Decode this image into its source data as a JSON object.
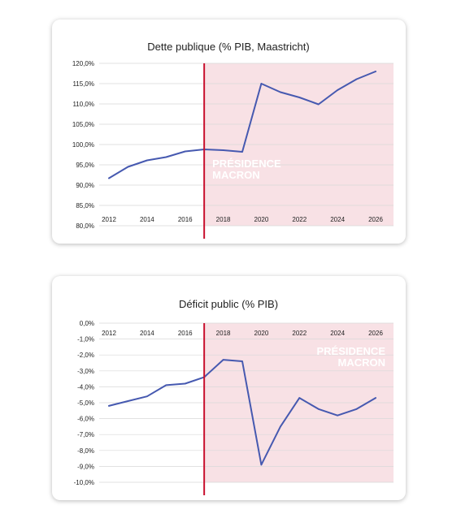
{
  "chart_data": [
    {
      "type": "line",
      "title": "Dette publique (% PIB, Maastricht)",
      "x": [
        2012,
        2013,
        2014,
        2015,
        2016,
        2017,
        2018,
        2019,
        2020,
        2021,
        2022,
        2023,
        2024,
        2025,
        2026
      ],
      "x_ticks": [
        "2012",
        "2014",
        "2016",
        "2018",
        "2020",
        "2022",
        "2024",
        "2026"
      ],
      "values": [
        91.7,
        94.5,
        96.1,
        96.9,
        98.3,
        98.8,
        98.6,
        98.2,
        115.0,
        112.9,
        111.6,
        109.9,
        113.4,
        116.1,
        118.0
      ],
      "ylim": [
        80,
        120
      ],
      "y_ticks": [
        "80,0%",
        "85,0%",
        "90,0%",
        "95,0%",
        "100,0%",
        "105,0%",
        "110,0%",
        "115,0%",
        "120,0%"
      ],
      "highlight": {
        "from": 2017,
        "to": 2026.5,
        "label_lines": [
          "PRÉSIDENCE",
          "MACRON"
        ],
        "label_position": "left-middle"
      },
      "line_color": "#4659b0",
      "band_color": "#f8e1e5",
      "marker_color": "#c8102e"
    },
    {
      "type": "line",
      "title": "Déficit public (% PIB)",
      "x": [
        2012,
        2013,
        2014,
        2015,
        2016,
        2017,
        2018,
        2019,
        2020,
        2021,
        2022,
        2023,
        2024,
        2025,
        2026
      ],
      "x_ticks": [
        "2012",
        "2014",
        "2016",
        "2018",
        "2020",
        "2022",
        "2024",
        "2026"
      ],
      "values": [
        -5.2,
        -4.9,
        -4.6,
        -3.9,
        -3.8,
        -3.4,
        -2.3,
        -2.4,
        -8.9,
        -6.5,
        -4.7,
        -5.4,
        -5.8,
        -5.4,
        -4.7
      ],
      "ylim": [
        -10,
        0
      ],
      "y_ticks": [
        "0,0%",
        "-1,0%",
        "-2,0%",
        "-3,0%",
        "-4,0%",
        "-5,0%",
        "-6,0%",
        "-7,0%",
        "-8,0%",
        "-9,0%",
        "-10,0%"
      ],
      "highlight": {
        "from": 2017,
        "to": 2026.5,
        "label_lines": [
          "PRÉSIDENCE",
          "MACRON"
        ],
        "label_position": "top-right"
      },
      "line_color": "#4659b0",
      "band_color": "#f8e1e5",
      "marker_color": "#c8102e"
    }
  ]
}
